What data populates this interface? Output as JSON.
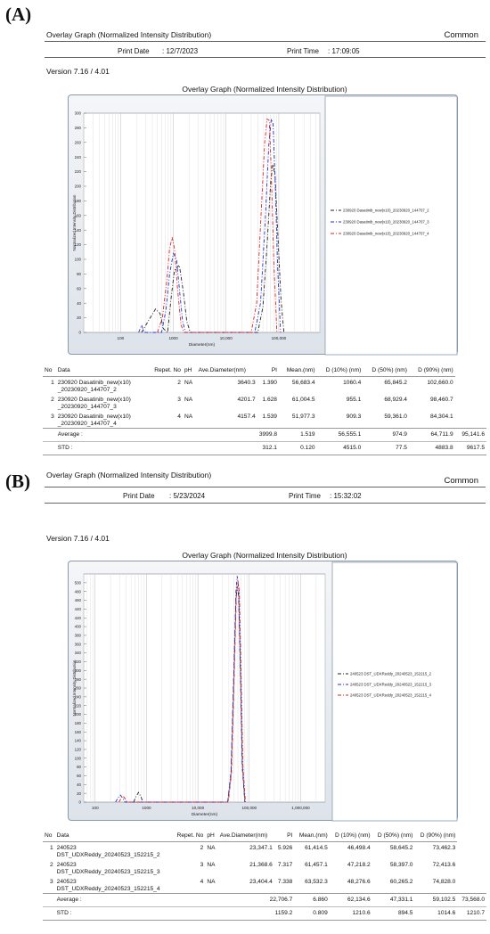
{
  "panels": [
    {
      "label": "(A)",
      "header": {
        "title": "Overlay Graph (Normalized Intensity Distribution)",
        "common": "Common",
        "print_date_label": "Print Date",
        "print_date": ": 12/7/2023",
        "print_time_label": "Print Time",
        "print_time": ": 17:09:05"
      },
      "version": "Version 7.16 / 4.01",
      "table": {
        "headers": [
          "No",
          "Data",
          "Repet. No",
          "pH",
          "Ave.Diameter(nm)",
          "PI",
          "Mean.(nm)",
          "D (10%) (nm)",
          "D (50%) (nm)",
          "D (90%) (nm)"
        ],
        "rows": [
          {
            "no": "1",
            "data1": "230920 Dasatinib_new(x10)",
            "data2": "_20230920_144707_2",
            "repet": "2",
            "ph": "NA",
            "ave": "3640.3",
            "pi": "1.390",
            "mean": "56,683.4",
            "d10": "1060.4",
            "d50": "65,845.2",
            "d90": "102,660.0"
          },
          {
            "no": "2",
            "data1": "230920 Dasatinib_new(x10)",
            "data2": "_20230920_144707_3",
            "repet": "3",
            "ph": "NA",
            "ave": "4201.7",
            "pi": "1.628",
            "mean": "61,004.5",
            "d10": "955.1",
            "d50": "68,929.4",
            "d90": "98,460.7"
          },
          {
            "no": "3",
            "data1": "230920 Dasatinib_new(x10)",
            "data2": "_20230920_144707_4",
            "repet": "4",
            "ph": "NA",
            "ave": "4157.4",
            "pi": "1.539",
            "mean": "51,977.3",
            "d10": "909.3",
            "d50": "59,361.0",
            "d90": "84,304.1"
          }
        ],
        "average": {
          "label": "Average :",
          "ave": "3999.8",
          "pi": "1.519",
          "mean": "56,555.1",
          "d10": "974.9",
          "d50": "64,711.9",
          "d90": "95,141.6"
        },
        "std": {
          "label": "STD :",
          "ave": "312.1",
          "pi": "0.120",
          "mean": "4515.0",
          "d10": "77.5",
          "d50": "4883.8",
          "d90": "9617.5"
        }
      }
    },
    {
      "label": "(B)",
      "header": {
        "title": "Overlay Graph (Normalized Intensity Distribution)",
        "common": "Common",
        "print_date_label": "Print Date",
        "print_date": ": 5/23/2024",
        "print_time_label": "Print Time",
        "print_time": ": 15:32:02"
      },
      "version": "Version 7.16 / 4.01",
      "table": {
        "headers": [
          "No",
          "Data",
          "Repet. No",
          "pH",
          "Ave.Diameter(nm)",
          "PI",
          "Mean.(nm)",
          "D (10%) (nm)",
          "D (50%) (nm)",
          "D (90%) (nm)"
        ],
        "rows": [
          {
            "no": "1",
            "data1": "240523",
            "data2": "DST_UDXReddy_20240523_152215_2",
            "repet": "2",
            "ph": "NA",
            "ave": "23,347.1",
            "pi": "5.926",
            "mean": "61,414.5",
            "d10": "46,498.4",
            "d50": "58,645.2",
            "d90": "73,462.3"
          },
          {
            "no": "2",
            "data1": "240523",
            "data2": "DST_UDXReddy_20240523_152215_3",
            "repet": "3",
            "ph": "NA",
            "ave": "21,368.6",
            "pi": "7.317",
            "mean": "61,457.1",
            "d10": "47,218.2",
            "d50": "58,397.0",
            "d90": "72,413.6"
          },
          {
            "no": "3",
            "data1": "240523",
            "data2": "DST_UDXReddy_20240523_152215_4",
            "repet": "4",
            "ph": "NA",
            "ave": "23,404.4",
            "pi": "7.338",
            "mean": "63,532.3",
            "d10": "48,276.6",
            "d50": "60,265.2",
            "d90": "74,828.0"
          }
        ],
        "average": {
          "label": "Average :",
          "ave": "22,706.7",
          "pi": "6.860",
          "mean": "62,134.6",
          "d10": "47,331.1",
          "d50": "59,102.5",
          "d90": "73,568.0"
        },
        "std": {
          "label": "STD :",
          "ave": "1159.2",
          "pi": "0.809",
          "mean": "1210.6",
          "d10": "894.5",
          "d50": "1014.6",
          "d90": "1210.7"
        }
      }
    }
  ],
  "chart_data": [
    {
      "type": "line",
      "title": "Overlay Graph (Normalized Intensity Distribution)",
      "xlabel": "Diameter(nm)",
      "ylabel": "Normalized Intensity Distribution",
      "xscale": "log",
      "xlim": [
        20,
        600000
      ],
      "ylim": [
        0,
        300
      ],
      "xticks": [
        100,
        1000,
        10000,
        100000
      ],
      "xtick_labels": [
        "100",
        "1000",
        "10,000",
        "100,000"
      ],
      "yticks": [
        0,
        20,
        40,
        60,
        80,
        100,
        120,
        140,
        160,
        180,
        200,
        220,
        240,
        260,
        280,
        300
      ],
      "grid": true,
      "legend_position": "right",
      "series": [
        {
          "name": "230920 Dasatinib_new(x10)_20230920_144707_2",
          "color": "#222222",
          "dash": "4,2,1,2",
          "x": [
            250,
            350,
            460,
            560,
            650,
            780,
            900,
            1050,
            1300,
            1550,
            1800,
            2100,
            40000,
            50000,
            60000,
            70000,
            77000,
            85000,
            95000,
            110000,
            125000
          ],
          "y": [
            0,
            18,
            32,
            26,
            5,
            0,
            45,
            85,
            92,
            55,
            15,
            0,
            0,
            35,
            120,
            205,
            230,
            215,
            140,
            45,
            0
          ]
        },
        {
          "name": "230920 Dasatinib_new(x10)_20230920_144707_3",
          "color": "#2233cc",
          "dash": "4,2,1,2",
          "x": [
            220,
            250,
            280,
            600,
            720,
            850,
            1000,
            1150,
            1300,
            1500,
            1700,
            35000,
            45000,
            55000,
            65000,
            72000,
            78000,
            86000,
            95000,
            108000
          ],
          "y": [
            0,
            10,
            0,
            0,
            30,
            80,
            108,
            100,
            60,
            15,
            0,
            0,
            40,
            150,
            260,
            292,
            285,
            200,
            90,
            0
          ]
        },
        {
          "name": "230920 Dasatinib_new(x10)_20230920_144707_4",
          "color": "#dd2222",
          "dash": "4,2,1,2",
          "x": [
            500,
            620,
            750,
            850,
            950,
            1050,
            1200,
            1400,
            1600,
            30000,
            38000,
            46000,
            54000,
            60000,
            66000,
            72000,
            80000,
            92000
          ],
          "y": [
            0,
            20,
            70,
            115,
            130,
            115,
            60,
            10,
            0,
            0,
            40,
            160,
            260,
            292,
            290,
            220,
            100,
            0
          ]
        }
      ]
    },
    {
      "type": "line",
      "title": "Overlay Graph (Normalized Intensity Distribution)",
      "xlabel": "Diameter(nm)",
      "ylabel": "Normalized Intensity Distribution",
      "xscale": "log",
      "xlim": [
        60,
        3000000
      ],
      "ylim": [
        0,
        520
      ],
      "xticks": [
        100,
        1000,
        10000,
        100000,
        1000000
      ],
      "xtick_labels": [
        "100",
        "1000",
        "10,000",
        "100,000",
        "1,000,000"
      ],
      "yticks": [
        0,
        20,
        40,
        60,
        80,
        100,
        120,
        140,
        160,
        180,
        200,
        220,
        240,
        260,
        280,
        300,
        320,
        340,
        360,
        380,
        400,
        420,
        440,
        460,
        480,
        500
      ],
      "grid": true,
      "legend_position": "right",
      "series": [
        {
          "name": "240523 DST_UDXReddy_20240523_152215_2",
          "color": "#222222",
          "dash": "4,2,1,2",
          "x": [
            560,
            620,
            700,
            780,
            850,
            38000,
            44000,
            50000,
            55000,
            58000,
            62000,
            67000,
            73000,
            82000
          ],
          "y": [
            0,
            12,
            22,
            12,
            0,
            0,
            60,
            280,
            460,
            492,
            470,
            300,
            80,
            0
          ]
        },
        {
          "name": "240523 DST_UDXReddy_20240523_152215_3",
          "color": "#2233cc",
          "dash": "4,2,1,2",
          "x": [
            250,
            280,
            310,
            340,
            380,
            38000,
            44000,
            50000,
            55000,
            58000,
            62000,
            67000,
            73000,
            82000
          ],
          "y": [
            0,
            10,
            16,
            10,
            0,
            0,
            70,
            300,
            480,
            515,
            490,
            310,
            90,
            0
          ]
        },
        {
          "name": "240523 DST_UDXReddy_20240523_152215_4",
          "color": "#dd2222",
          "dash": "4,2,1,2",
          "x": [
            290,
            320,
            350,
            380,
            420,
            39000,
            45000,
            51000,
            56000,
            60000,
            64000,
            69000,
            75000,
            84000
          ],
          "y": [
            0,
            8,
            14,
            8,
            0,
            0,
            65,
            290,
            470,
            505,
            480,
            300,
            85,
            0
          ]
        }
      ]
    }
  ]
}
